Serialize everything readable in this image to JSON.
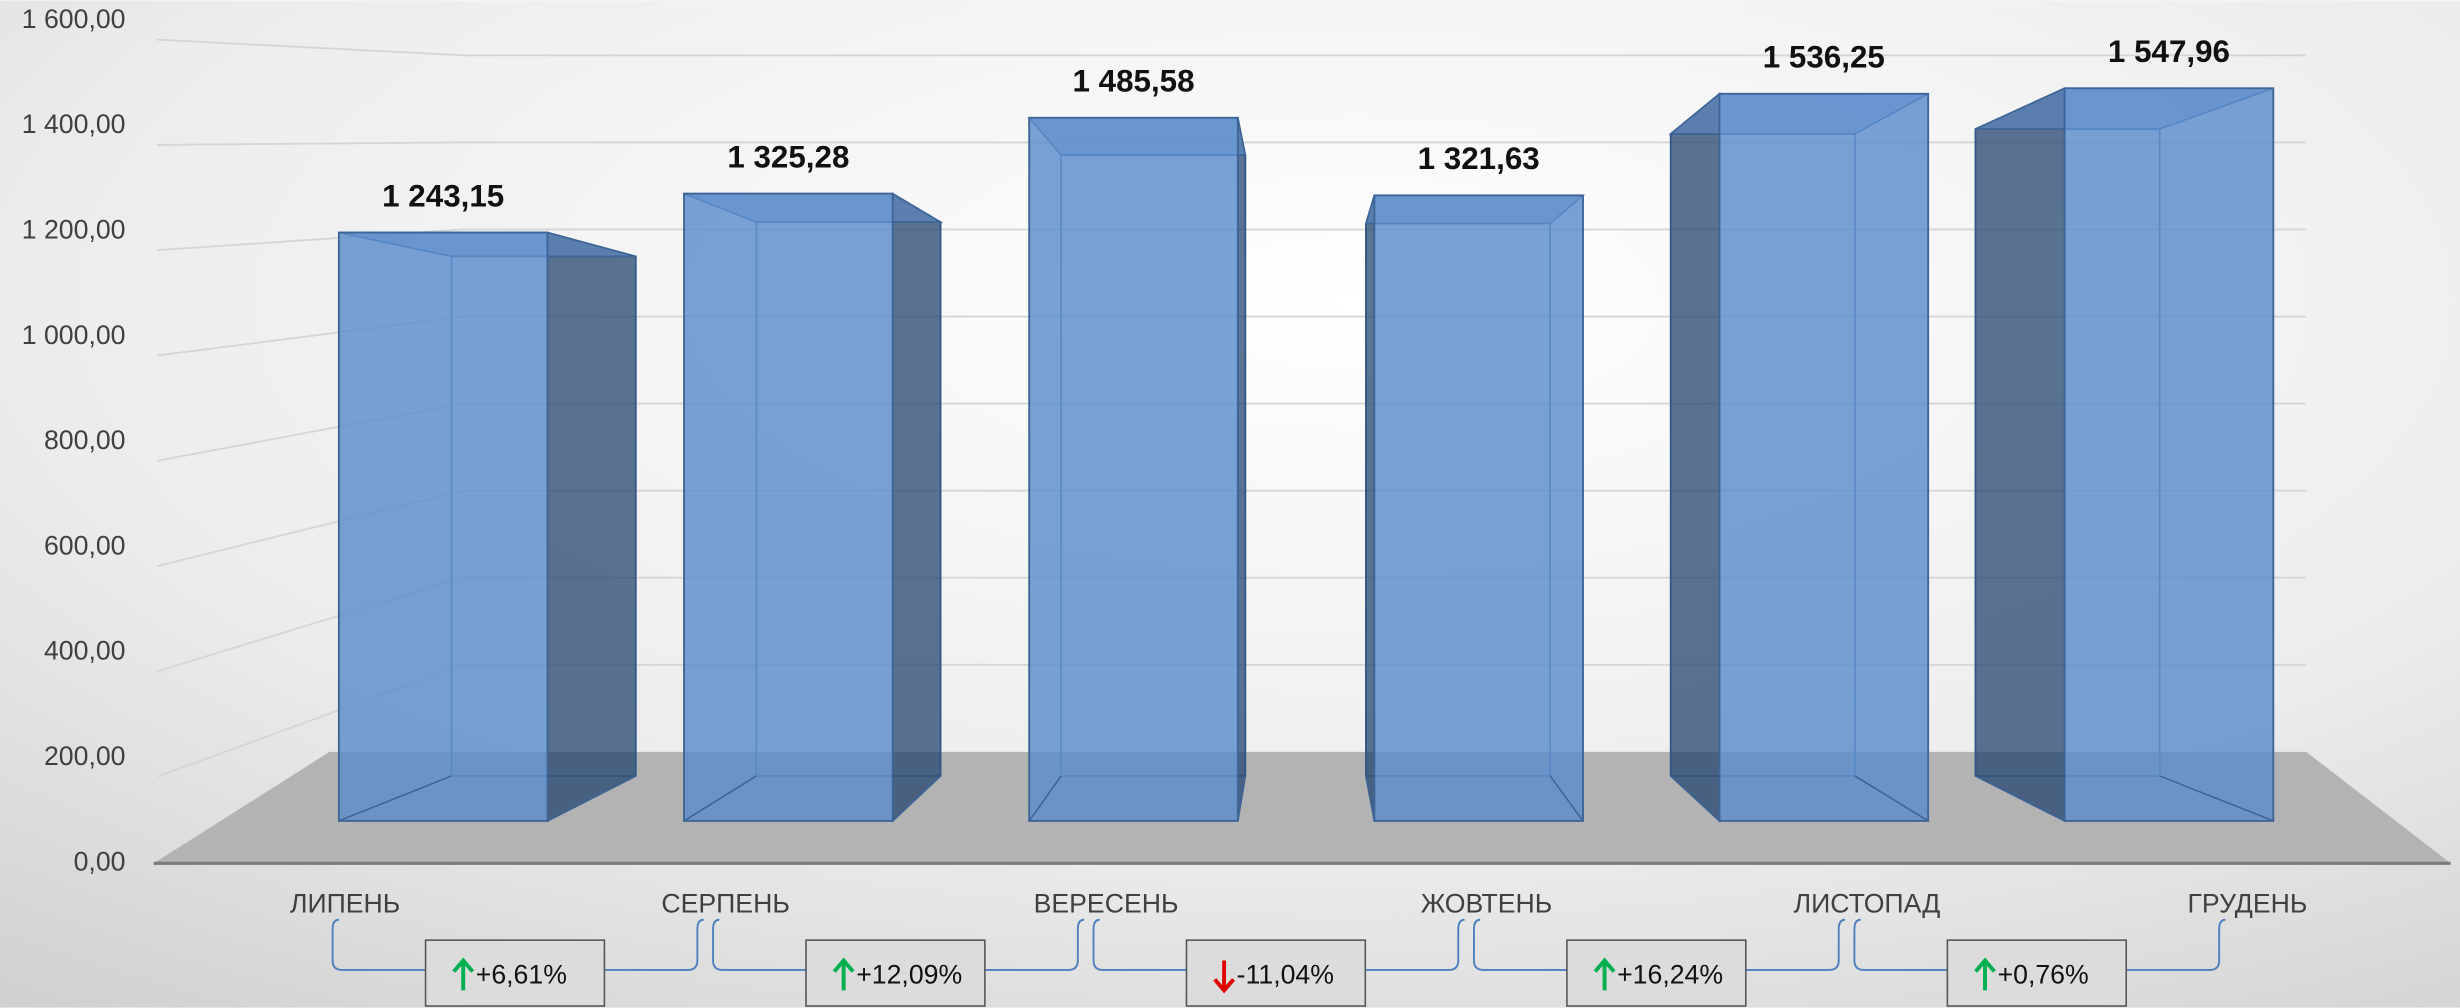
{
  "chart_data": {
    "type": "bar",
    "categories": [
      "ЛИПЕНЬ",
      "СЕРПЕНЬ",
      "ВЕРЕСЕНЬ",
      "ЖОВТЕНЬ",
      "ЛИСТОПАД",
      "ГРУДЕНЬ"
    ],
    "values": [
      1243.15,
      1325.28,
      1485.58,
      1321.63,
      1536.25,
      1547.96
    ],
    "value_labels": [
      "1 243,15",
      "1 325,28",
      "1 485,58",
      "1 321,63",
      "1 536,25",
      "1 547,96"
    ],
    "color": "#5b8ccc",
    "ylim": [
      0,
      1600
    ],
    "yticks": [
      {
        "value": 0,
        "label": "0,00"
      },
      {
        "value": 200,
        "label": "200,00"
      },
      {
        "value": 400,
        "label": "400,00"
      },
      {
        "value": 600,
        "label": "600,00"
      },
      {
        "value": 800,
        "label": "800,00"
      },
      {
        "value": 1000,
        "label": "1 000,00"
      },
      {
        "value": 1200,
        "label": "1 200,00"
      },
      {
        "value": 1400,
        "label": "1 400,00"
      },
      {
        "value": 1600,
        "label": "1 600,00"
      }
    ],
    "grid": true,
    "changes": [
      {
        "value": 6.61,
        "label": "+6,61%"
      },
      {
        "value": 12.09,
        "label": "+12,09%"
      },
      {
        "value": -11.04,
        "label": "-11,04%"
      },
      {
        "value": 16.24,
        "label": "+16,24%"
      },
      {
        "value": 0.76,
        "label": "+0,76%"
      }
    ]
  }
}
